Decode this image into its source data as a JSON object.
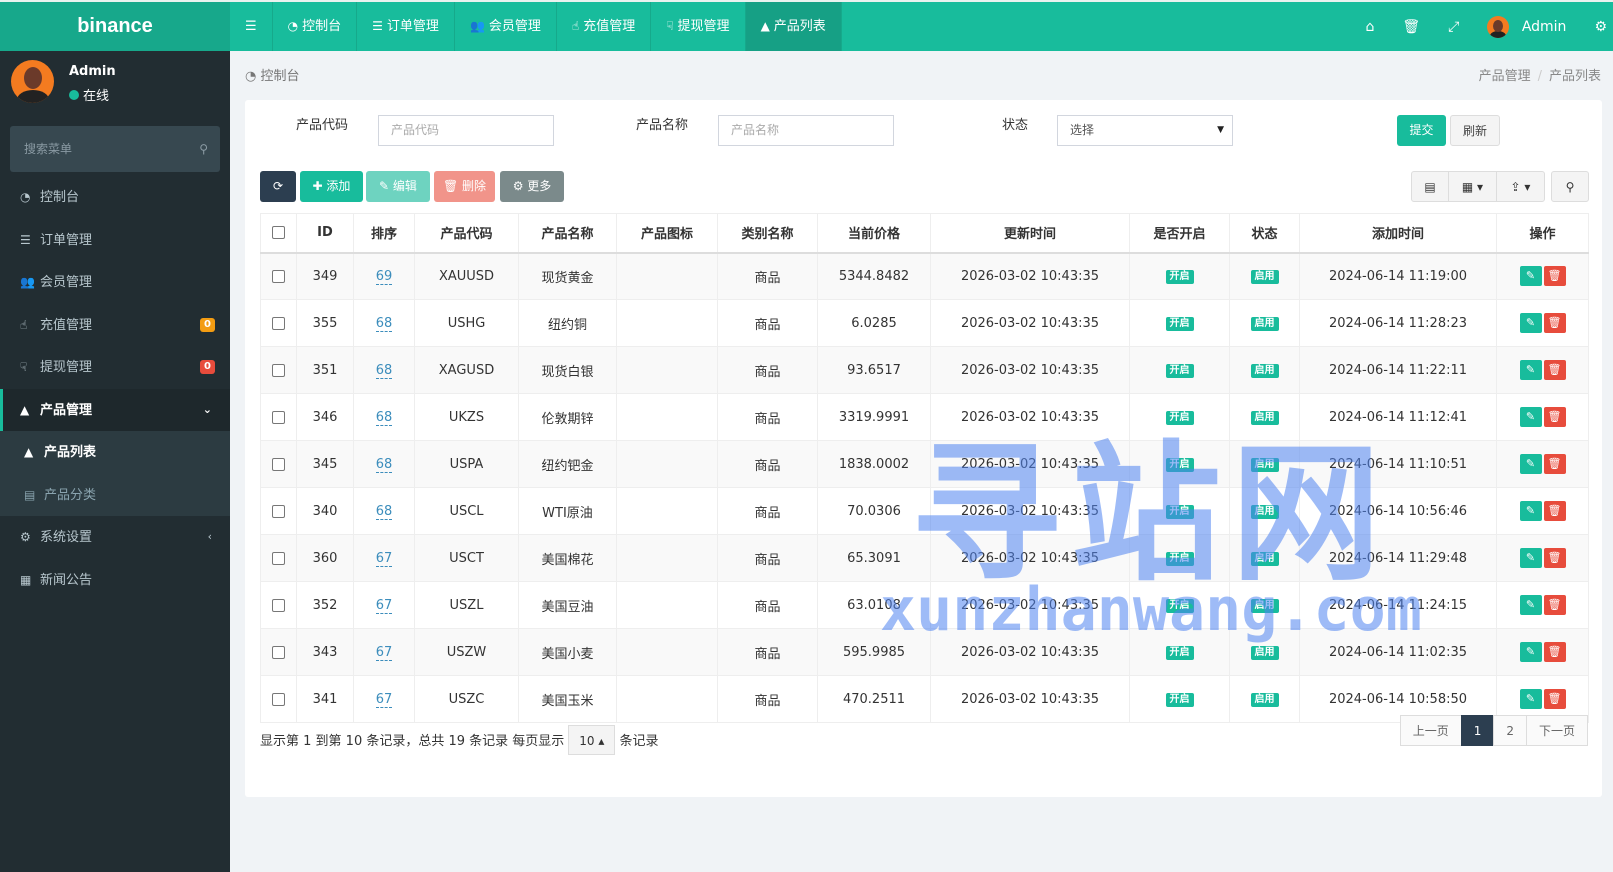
{
  "app": {
    "logo": "binance"
  },
  "topnav": {
    "items": [
      {
        "icon": "dashboard-icon",
        "label": "控制台"
      },
      {
        "icon": "list-icon",
        "label": "订单管理"
      },
      {
        "icon": "users-icon",
        "label": "会员管理"
      },
      {
        "icon": "hand-icon",
        "label": "充值管理"
      },
      {
        "icon": "hand-down-icon",
        "label": "提现管理"
      },
      {
        "icon": "shopping-bag-icon",
        "label": "产品列表",
        "active": true
      }
    ],
    "user": "Admin"
  },
  "sidebar": {
    "user": {
      "name": "Admin",
      "status": "在线"
    },
    "search_placeholder": "搜索菜单",
    "items": [
      {
        "label": "控制台",
        "icon": "dashboard-icon"
      },
      {
        "label": "订单管理",
        "icon": "list-icon"
      },
      {
        "label": "会员管理",
        "icon": "users-icon"
      },
      {
        "label": "充值管理",
        "icon": "hand-icon",
        "badge": "0",
        "badge_color": "#f39c12"
      },
      {
        "label": "提现管理",
        "icon": "hand-down-icon",
        "badge": "0",
        "badge_color": "#e74c3c"
      },
      {
        "label": "产品管理",
        "icon": "shopping-bag-icon",
        "open": true
      },
      {
        "label": "产品列表",
        "icon": "shopping-bag-icon",
        "sub": true,
        "active": true
      },
      {
        "label": "产品分类",
        "icon": "list-alt-icon",
        "sub": true
      },
      {
        "label": "系统设置",
        "icon": "cogs-icon"
      },
      {
        "label": "新闻公告",
        "icon": "newspaper-icon"
      }
    ]
  },
  "breadcrumb": {
    "left": "控制台",
    "trail": [
      "产品管理",
      "产品列表"
    ]
  },
  "filters": {
    "code_label": "产品代码",
    "code_placeholder": "产品代码",
    "name_label": "产品名称",
    "name_placeholder": "产品名称",
    "status_label": "状态",
    "status_value": "选择",
    "submit": "提交",
    "reset": "刷新"
  },
  "toolbar": {
    "add": "添加",
    "edit": "编辑",
    "delete": "删除",
    "more": "更多"
  },
  "table": {
    "columns": [
      "ID",
      "排序",
      "产品代码",
      "产品名称",
      "产品图标",
      "类别名称",
      "当前价格",
      "更新时间",
      "是否开启",
      "状态",
      "添加时间",
      "操作"
    ],
    "rows": [
      [
        "349",
        "69",
        "XAUUSD",
        "现货黄金",
        "",
        "商品",
        "5344.8482",
        "2026-03-02 10:43:35",
        "开启",
        "启用",
        "2024-06-14 11:19:00"
      ],
      [
        "355",
        "68",
        "USHG",
        "纽约铜",
        "",
        "商品",
        "6.0285",
        "2026-03-02 10:43:35",
        "开启",
        "启用",
        "2024-06-14 11:28:23"
      ],
      [
        "351",
        "68",
        "XAGUSD",
        "现货白银",
        "",
        "商品",
        "93.6517",
        "2026-03-02 10:43:35",
        "开启",
        "启用",
        "2024-06-14 11:22:11"
      ],
      [
        "346",
        "68",
        "UKZS",
        "伦敦期锌",
        "",
        "商品",
        "3319.9991",
        "2026-03-02 10:43:35",
        "开启",
        "启用",
        "2024-06-14 11:12:41"
      ],
      [
        "345",
        "68",
        "USPA",
        "纽约钯金",
        "",
        "商品",
        "1838.0002",
        "2026-03-02 10:43:35",
        "开启",
        "启用",
        "2024-06-14 11:10:51"
      ],
      [
        "340",
        "68",
        "USCL",
        "WTI原油",
        "",
        "商品",
        "70.0306",
        "2026-03-02 10:43:35",
        "开启",
        "启用",
        "2024-06-14 10:56:46"
      ],
      [
        "360",
        "67",
        "USCT",
        "美国棉花",
        "",
        "商品",
        "65.3091",
        "2026-03-02 10:43:35",
        "开启",
        "启用",
        "2024-06-14 11:29:48"
      ],
      [
        "352",
        "67",
        "USZL",
        "美国豆油",
        "",
        "商品",
        "63.0108",
        "2026-03-02 10:43:35",
        "开启",
        "启用",
        "2024-06-14 11:24:15"
      ],
      [
        "343",
        "67",
        "USZW",
        "美国小麦",
        "",
        "商品",
        "595.9985",
        "2026-03-02 10:43:35",
        "开启",
        "启用",
        "2024-06-14 11:02:35"
      ],
      [
        "341",
        "67",
        "USZC",
        "美国玉米",
        "",
        "商品",
        "470.2511",
        "2026-03-02 10:43:35",
        "开启",
        "启用",
        "2024-06-14 10:58:50"
      ]
    ]
  },
  "footer": {
    "summary": "显示第 1 到第 10 条记录，总共 19 条记录 每页显示",
    "page_size": "10",
    "suffix": "条记录"
  },
  "pagination": {
    "prev": "上一页",
    "pages": [
      "1",
      "2"
    ],
    "current": "1",
    "next": "下一页"
  },
  "watermark": {
    "cn": "寻站网",
    "en": "xunzhanwang.com"
  },
  "colors": {
    "primary": "#18bc9c",
    "danger": "#e74c3c",
    "warning": "#f39c12",
    "dark": "#2c3e50",
    "sidebar": "#222d32"
  }
}
